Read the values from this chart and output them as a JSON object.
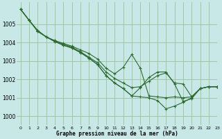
{
  "background_color": "#c8e8e8",
  "grid_color": "#a0c8a0",
  "line_color": "#2d6a2d",
  "xlabel": "Graphe pression niveau de la mer (hPa)",
  "xlim": [
    -0.5,
    23
  ],
  "ylim": [
    999.5,
    1006.2
  ],
  "yticks": [
    1000,
    1001,
    1002,
    1003,
    1004,
    1005
  ],
  "xticks": [
    0,
    1,
    2,
    3,
    4,
    5,
    6,
    7,
    8,
    9,
    10,
    11,
    12,
    13,
    14,
    15,
    16,
    17,
    18,
    19,
    20,
    21,
    22,
    23
  ],
  "series": [
    [
      1005.8,
      1005.2,
      1004.6,
      1004.3,
      1004.1,
      1003.95,
      1003.8,
      1003.6,
      1003.4,
      1003.1,
      1002.6,
      1002.3,
      1002.65,
      1003.35,
      1002.6,
      1001.1,
      1001.05,
      1001.0,
      1001.05,
      1001.0,
      1001.05,
      1001.5,
      1001.6,
      1001.6
    ],
    [
      1005.8,
      1005.2,
      1004.6,
      1004.3,
      1004.1,
      1003.9,
      1003.75,
      1003.5,
      1003.2,
      1002.9,
      1002.4,
      1002.05,
      1001.8,
      1001.55,
      1001.6,
      1001.9,
      1002.2,
      1002.35,
      1001.8,
      1001.75,
      1001.05,
      1001.5,
      1001.6,
      1001.6
    ],
    [
      1005.8,
      1005.2,
      1004.65,
      1004.3,
      1004.05,
      1003.85,
      1003.7,
      1003.45,
      1003.15,
      1002.8,
      1002.2,
      1001.8,
      1001.5,
      1001.1,
      1001.05,
      1001.0,
      1000.85,
      1000.4,
      1000.55,
      1000.75,
      1001.0,
      1001.5,
      1001.6,
      1001.6
    ],
    [
      1005.8,
      1005.2,
      1004.65,
      1004.3,
      1004.05,
      1003.85,
      1003.7,
      1003.45,
      1003.15,
      1002.8,
      1002.2,
      1001.8,
      1001.5,
      1001.1,
      1001.55,
      1002.1,
      1002.4,
      1002.4,
      1001.75,
      1000.8,
      1000.95,
      1001.5,
      1001.6,
      1001.6
    ]
  ]
}
